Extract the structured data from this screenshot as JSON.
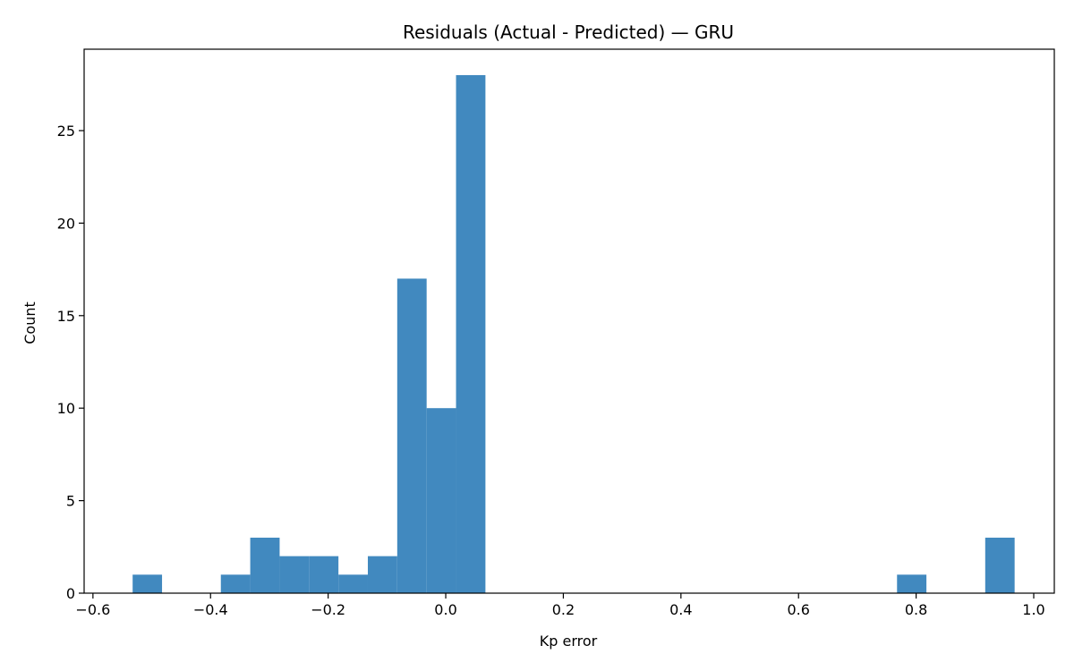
{
  "chart_data": {
    "type": "bar",
    "title": "Residuals (Actual - Predicted) — GRU",
    "xlabel": "Kp error",
    "ylabel": "Count",
    "bar_color": "#4189bf",
    "xlim": [
      -0.615,
      1.035
    ],
    "ylim": [
      0,
      29.4
    ],
    "xticks": [
      -0.6,
      -0.4,
      -0.2,
      0.0,
      0.2,
      0.4,
      0.6,
      0.8,
      1.0
    ],
    "xtick_labels": [
      "−0.6",
      "−0.4",
      "−0.2",
      "0.0",
      "0.2",
      "0.4",
      "0.6",
      "0.8",
      "1.0"
    ],
    "yticks": [
      0,
      5,
      10,
      15,
      20,
      25
    ],
    "ytick_labels": [
      "0",
      "5",
      "10",
      "15",
      "20",
      "25"
    ],
    "bins": [
      {
        "x0": -0.5325,
        "x1": -0.4825,
        "count": 1
      },
      {
        "x0": -0.3825,
        "x1": -0.3325,
        "count": 1
      },
      {
        "x0": -0.3325,
        "x1": -0.2825,
        "count": 3
      },
      {
        "x0": -0.2825,
        "x1": -0.2325,
        "count": 2
      },
      {
        "x0": -0.2325,
        "x1": -0.1825,
        "count": 2
      },
      {
        "x0": -0.1825,
        "x1": -0.1325,
        "count": 1
      },
      {
        "x0": -0.1325,
        "x1": -0.0825,
        "count": 2
      },
      {
        "x0": -0.0825,
        "x1": -0.0325,
        "count": 17
      },
      {
        "x0": -0.0325,
        "x1": 0.0175,
        "count": 10
      },
      {
        "x0": 0.0175,
        "x1": 0.0675,
        "count": 28
      },
      {
        "x0": 0.7675,
        "x1": 0.8175,
        "count": 1
      },
      {
        "x0": 0.9175,
        "x1": 0.9675,
        "count": 3
      }
    ]
  }
}
